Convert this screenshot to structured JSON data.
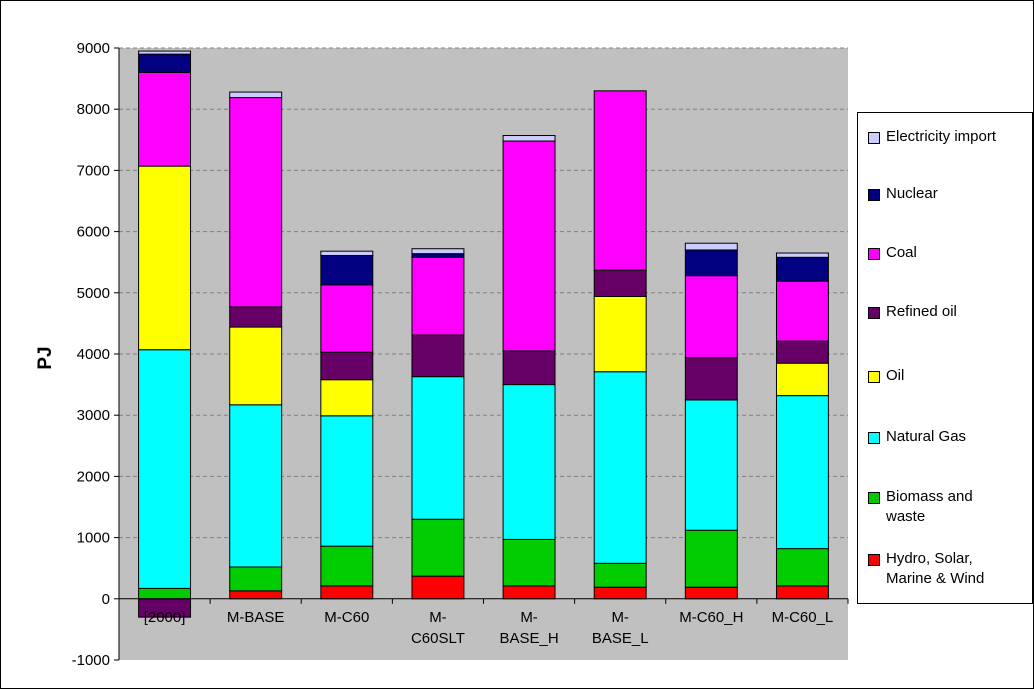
{
  "chart_data": {
    "type": "bar",
    "stacked": true,
    "ylabel": "PJ",
    "xlabel": "",
    "ylim": [
      -1000,
      9000
    ],
    "ytick_step": 1000,
    "grid": "horizontal dashed",
    "legend_position": "right",
    "categories": [
      "[2000]",
      "M-BASE",
      "M-C60",
      "M-C60SLT",
      "M-BASE_H",
      "M-BASE_L",
      "M-C60_H",
      "M-C60_L"
    ],
    "category_label_lines": [
      [
        "[2000]"
      ],
      [
        "M-BASE"
      ],
      [
        "M-C60"
      ],
      [
        "M-",
        "C60SLT"
      ],
      [
        "M-",
        "BASE_H"
      ],
      [
        "M-",
        "BASE_L"
      ],
      [
        "M-C60_H"
      ],
      [
        "M-C60_L"
      ]
    ],
    "series": [
      {
        "name": "Hydro, Solar, Marine & Wind",
        "color": "#FF0000",
        "values": [
          0,
          130,
          210,
          370,
          210,
          190,
          190,
          210
        ]
      },
      {
        "name": "Biomass and waste",
        "color": "#00CC00",
        "values": [
          170,
          390,
          650,
          930,
          760,
          390,
          930,
          610
        ]
      },
      {
        "name": "Natural Gas",
        "color": "#00FFFF",
        "values": [
          3900,
          2650,
          2130,
          2330,
          2530,
          3130,
          2130,
          2500
        ]
      },
      {
        "name": "Oil",
        "color": "#FFFF00",
        "values": [
          3000,
          1270,
          590,
          0,
          0,
          1230,
          0,
          530
        ]
      },
      {
        "name": "Refined oil",
        "color": "#660066",
        "values": [
          -300,
          330,
          450,
          680,
          550,
          430,
          690,
          360
        ]
      },
      {
        "name": "Coal",
        "color": "#FF00FF",
        "values": [
          1530,
          3420,
          1100,
          1270,
          3430,
          2930,
          1340,
          980
        ]
      },
      {
        "name": "Nuclear",
        "color": "#000080",
        "values": [
          300,
          0,
          480,
          60,
          0,
          0,
          420,
          390
        ]
      },
      {
        "name": "Electricity import",
        "color": "#CCCCFF",
        "values": [
          50,
          90,
          70,
          80,
          90,
          0,
          110,
          70
        ]
      }
    ]
  },
  "legend": {
    "items": [
      {
        "label": "Electricity import",
        "color": "#CCCCFF"
      },
      {
        "label": "Nuclear",
        "color": "#000080"
      },
      {
        "label": "Coal",
        "color": "#FF00FF"
      },
      {
        "label": "Refined oil",
        "color": "#660066"
      },
      {
        "label": "Oil",
        "color": "#FFFF00"
      },
      {
        "label": "Natural Gas",
        "color": "#00FFFF"
      },
      {
        "label": "Biomass and waste",
        "color": "#00CC00"
      },
      {
        "label": "Hydro, Solar, Marine & Wind",
        "color": "#FF0000"
      }
    ]
  }
}
